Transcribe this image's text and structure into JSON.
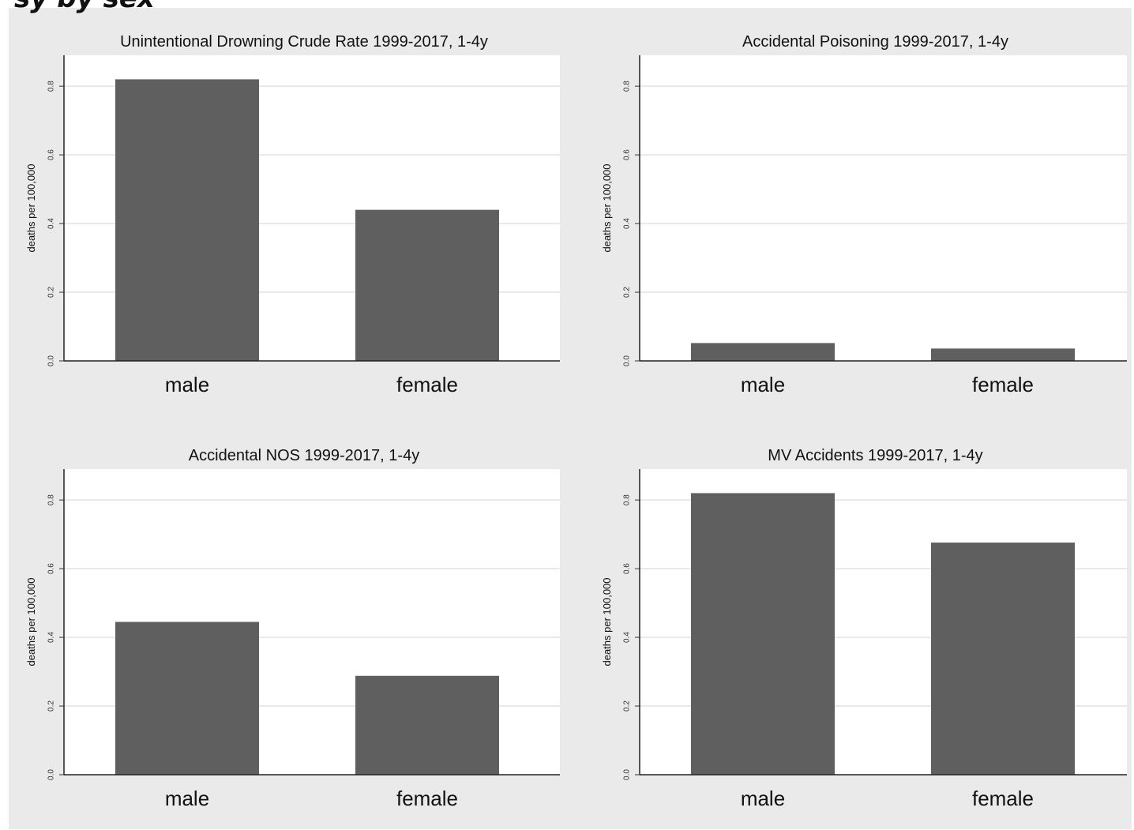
{
  "header": {
    "clipped_text": "sy by sex"
  },
  "style": {
    "bar_color": "#5f5f5f",
    "plot_bg": "#ffffff",
    "frame_bg": "#eaeaea",
    "grid_color": "#e2e2e2"
  },
  "chart_data": [
    {
      "type": "bar",
      "title": "Unintentional Drowning Crude Rate 1999-2017, 1-4y",
      "categories": [
        "male",
        "female"
      ],
      "values": [
        0.82,
        0.44
      ],
      "ylabel": "deaths per 100,000",
      "yticks": [
        "0.0",
        "0.2",
        "0.4",
        "0.6",
        "0.8"
      ],
      "ylim": [
        0,
        0.89
      ],
      "grid": true
    },
    {
      "type": "bar",
      "title": "Accidental Poisoning 1999-2017, 1-4y",
      "categories": [
        "male",
        "female"
      ],
      "values": [
        0.052,
        0.036
      ],
      "ylabel": "deaths per 100,000",
      "yticks": [
        "0.0",
        "0.2",
        "0.4",
        "0.6",
        "0.8"
      ],
      "ylim": [
        0,
        0.89
      ],
      "grid": true
    },
    {
      "type": "bar",
      "title": "Accidental NOS 1999-2017, 1-4y",
      "categories": [
        "male",
        "female"
      ],
      "values": [
        0.445,
        0.288
      ],
      "ylabel": "deaths per 100,000",
      "yticks": [
        "0.0",
        "0.2",
        "0.4",
        "0.6",
        "0.8"
      ],
      "ylim": [
        0,
        0.89
      ],
      "grid": true
    },
    {
      "type": "bar",
      "title": "MV Accidents 1999-2017, 1-4y",
      "categories": [
        "male",
        "female"
      ],
      "values": [
        0.82,
        0.676
      ],
      "ylabel": "deaths per 100,000",
      "yticks": [
        "0.0",
        "0.2",
        "0.4",
        "0.6",
        "0.8"
      ],
      "ylim": [
        0,
        0.89
      ],
      "grid": true
    }
  ]
}
